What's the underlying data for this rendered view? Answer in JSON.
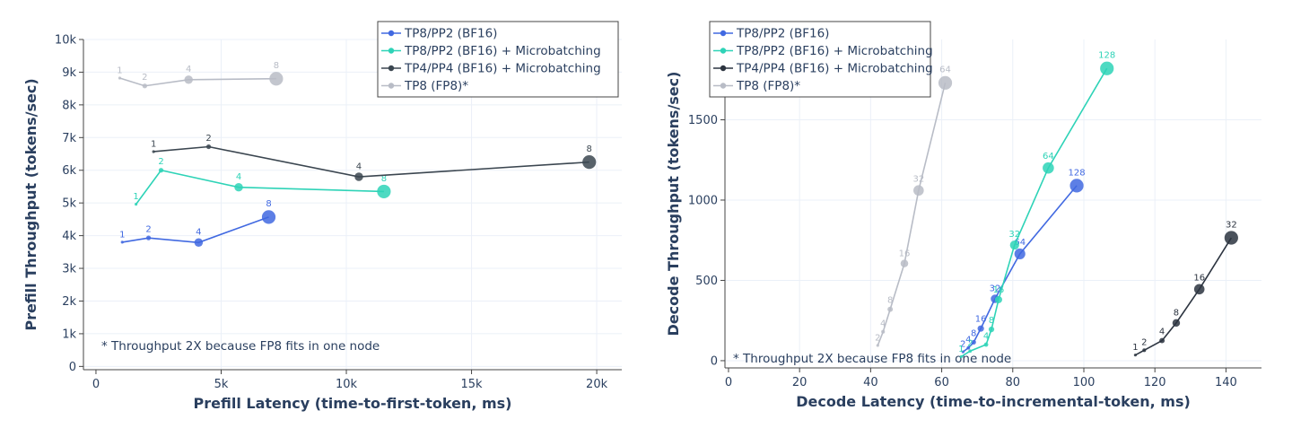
{
  "chart_data": [
    {
      "type": "line",
      "xlabel": "Prefill Latency (time-to-first-token, ms)",
      "ylabel": "Prefill Throughput (tokens/sec)",
      "xlim": [
        -500,
        21000
      ],
      "ylim": [
        -100,
        10000
      ],
      "xticks": [
        0,
        5000,
        10000,
        15000,
        20000
      ],
      "xtick_labels": [
        "0",
        "5k",
        "10k",
        "15k",
        "20k"
      ],
      "yticks": [
        0,
        1000,
        2000,
        3000,
        4000,
        5000,
        6000,
        7000,
        8000,
        9000,
        10000
      ],
      "ytick_labels": [
        "0",
        "1k",
        "2k",
        "3k",
        "4k",
        "5k",
        "6k",
        "7k",
        "8k",
        "9k",
        "10k"
      ],
      "grid": true,
      "legend_position": "top-right",
      "annotation": "* Throughput 2X because FP8 fits in one node",
      "series": [
        {
          "name": "TP8/PP2 (BF16)",
          "color": "#4169e1",
          "x": [
            1050,
            2100,
            4100,
            6900
          ],
          "y": [
            3800,
            3930,
            3790,
            4570
          ],
          "labels": [
            "1",
            "2",
            "4",
            "8"
          ]
        },
        {
          "name": "TP8/PP2 (BF16) + Microbatching",
          "color": "#2ed3b7",
          "x": [
            1600,
            2600,
            5700,
            11500
          ],
          "y": [
            4960,
            6000,
            5480,
            5350
          ],
          "labels": [
            "1",
            "2",
            "4",
            "8"
          ]
        },
        {
          "name": "TP4/PP4 (BF16) + Microbatching",
          "color": "#3b4650",
          "x": [
            2300,
            4500,
            10500,
            19700
          ],
          "y": [
            6570,
            6720,
            5800,
            6250
          ],
          "labels": [
            "1",
            "2",
            "4",
            "8"
          ]
        },
        {
          "name": "TP8 (FP8)*",
          "color": "#b8bcc6",
          "x": [
            950,
            1950,
            3700,
            7200
          ],
          "y": [
            8820,
            8580,
            8770,
            8800
          ],
          "labels": [
            "1",
            "2",
            "4",
            "8"
          ]
        }
      ]
    },
    {
      "type": "line",
      "xlabel": "Decode Latency (time-to-incremental-token, ms)",
      "ylabel": "Decode Throughput (tokens/sec)",
      "xlim": [
        -1,
        150
      ],
      "ylim": [
        -45,
        2000
      ],
      "xticks": [
        0,
        20,
        40,
        60,
        80,
        100,
        120,
        140
      ],
      "xtick_labels": [
        "0",
        "20",
        "40",
        "60",
        "80",
        "100",
        "120",
        "140"
      ],
      "yticks": [
        0,
        500,
        1000,
        1500
      ],
      "ytick_labels": [
        "0",
        "500",
        "1000",
        "1500"
      ],
      "grid": true,
      "legend_position": "top-left",
      "annotation": "* Throughput 2X because FP8 fits in one node",
      "series": [
        {
          "name": "TP8/PP2 (BF16)",
          "color": "#4169e1",
          "x": [
            66,
            67.5,
            69,
            71,
            75,
            82,
            98
          ],
          "y": [
            55,
            80,
            115,
            200,
            385,
            665,
            1090
          ],
          "labels": [
            "2",
            "4",
            "8",
            "16",
            "32",
            "64",
            "128"
          ]
        },
        {
          "name": "TP8/PP2 (BF16) + Microbatching",
          "color": "#2ed3b7",
          "x": [
            65.5,
            68,
            72.5,
            74,
            76,
            80.5,
            90,
            106.5
          ],
          "y": [
            25,
            60,
            100,
            195,
            380,
            720,
            1200,
            1820
          ],
          "labels": [
            "1",
            "2",
            "4",
            "8",
            "16",
            "32",
            "64",
            "128"
          ]
        },
        {
          "name": "TP4/PP4 (BF16) + Microbatching",
          "color": "#2c3440",
          "x": [
            114.5,
            117,
            122,
            126,
            132.5,
            141.5
          ],
          "y": [
            35,
            65,
            125,
            235,
            445,
            765
          ],
          "labels": [
            "1",
            "2",
            "4",
            "8",
            "16",
            "32"
          ]
        },
        {
          "name": "TP8 (FP8)*",
          "color": "#b8bcc6",
          "x": [
            42,
            43.5,
            45.5,
            49.5,
            53.5,
            61
          ],
          "y": [
            95,
            180,
            320,
            605,
            1060,
            1730
          ],
          "labels": [
            "2",
            "4",
            "8",
            "16",
            "32",
            "64"
          ]
        }
      ]
    }
  ]
}
